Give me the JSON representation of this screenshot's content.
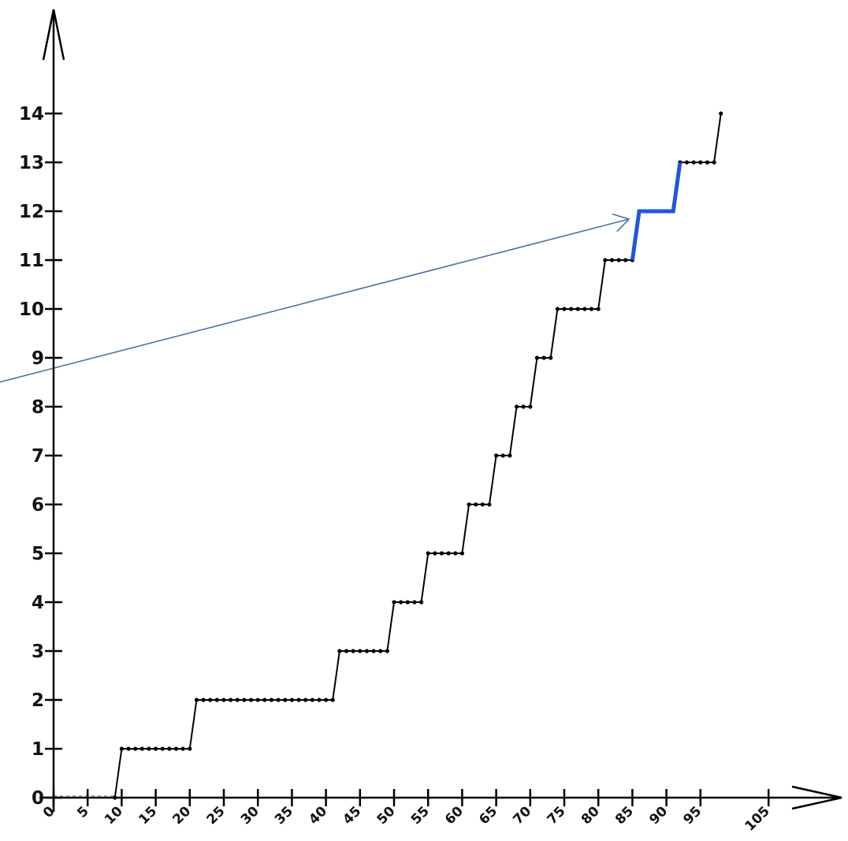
{
  "chart_data": {
    "type": "line",
    "title": "",
    "xlabel": "",
    "ylabel": "",
    "xlim": [
      0,
      105
    ],
    "ylim": [
      0,
      14
    ],
    "x_ticks": [
      0,
      5,
      10,
      15,
      20,
      25,
      30,
      35,
      40,
      45,
      50,
      55,
      60,
      65,
      70,
      75,
      80,
      85,
      90,
      95,
      105
    ],
    "y_ticks": [
      0,
      1,
      2,
      3,
      4,
      5,
      6,
      7,
      8,
      9,
      10,
      11,
      12,
      13,
      14
    ],
    "grid": false,
    "legend": "none",
    "colors": {
      "series": "#000000",
      "highlight": "#2255dd",
      "arrow": "#4a74a8",
      "axes": "#000000",
      "zero_dashes": "#aaaaaa"
    },
    "series": [
      {
        "style": "step-with-dots",
        "points": [
          [
            0,
            0
          ],
          [
            9,
            0
          ],
          [
            10,
            1
          ],
          [
            20,
            1
          ],
          [
            21,
            2
          ],
          [
            41,
            2
          ],
          [
            42,
            3
          ],
          [
            49,
            3
          ],
          [
            50,
            4
          ],
          [
            54,
            4
          ],
          [
            55,
            5
          ],
          [
            60,
            5
          ],
          [
            61,
            6
          ],
          [
            64,
            6
          ],
          [
            65,
            7
          ],
          [
            67,
            7
          ],
          [
            68,
            8
          ],
          [
            70,
            8
          ],
          [
            71,
            9
          ],
          [
            73,
            9
          ],
          [
            74,
            10
          ],
          [
            80,
            10
          ],
          [
            81,
            11
          ],
          [
            85,
            11
          ],
          [
            86,
            12
          ],
          [
            91,
            12
          ],
          [
            92,
            13
          ],
          [
            97,
            13
          ],
          [
            98,
            14
          ]
        ],
        "no_dot_ranges": [
          [
            0,
            9
          ],
          [
            85,
            92
          ]
        ],
        "zero_dashed_range": [
          0,
          9
        ]
      },
      {
        "style": "highlight",
        "points": [
          [
            85,
            11
          ],
          [
            86,
            12
          ],
          [
            91,
            12
          ],
          [
            92,
            13
          ]
        ]
      }
    ],
    "annotations": [
      {
        "type": "arrow",
        "from": [
          -8,
          8.5
        ],
        "to": [
          84.5,
          12
        ]
      }
    ]
  }
}
